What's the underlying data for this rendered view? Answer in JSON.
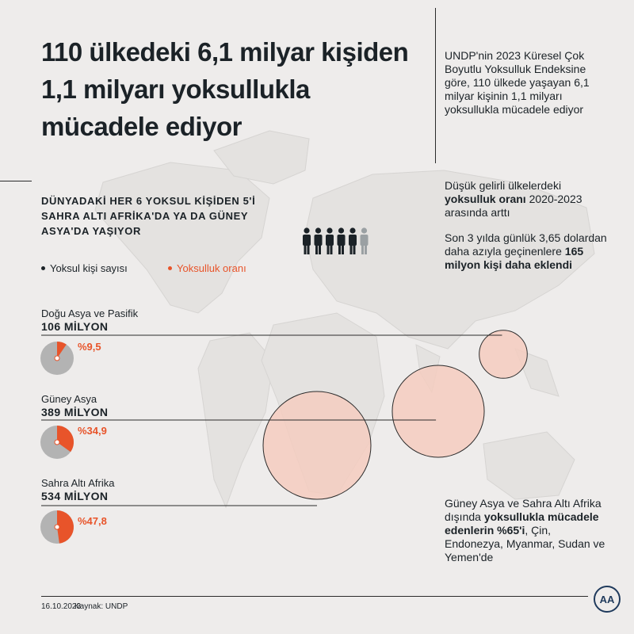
{
  "title": "110 ülkedeki 6,1 milyar kişiden 1,1 milyarı yoksullukla mücadele ediyor",
  "top_note": "UNDP'nin 2023 Küresel Çok Boyutlu Yoksulluk Endeksine göre, 110 ülkede yaşayan 6,1 milyar kişinin 1,1 milyarı yoksullukla mücadele ediyor",
  "subheading": "DÜNYADAKİ HER 6 YOKSUL KİŞİDEN 5'İ SAHRA ALTI AFRİKA'DA YA DA GÜNEY ASYA'DA YAŞIYOR",
  "people_icons": {
    "total": 6,
    "highlighted": 5,
    "color_main": "#1b2227",
    "color_other": "#9aa0a3"
  },
  "legend": {
    "poor_count": "Yoksul kişi sayısı",
    "poverty_rate": "Yoksulluk oranı"
  },
  "side_notes": {
    "p1_pre": "Düşük gelirli ülkelerdeki ",
    "p1_bold": "yoksulluk oranı",
    "p1_post": " 2020-2023 arasında arttı",
    "p2_pre": "Son 3 yılda günlük 3,65 dolardan daha azıyla geçinenlere ",
    "p2_bold": "165 milyon kişi daha eklendi",
    "p3_pre": "Güney Asya ve Sahra Altı Afrika dışında ",
    "p3_bold": "yoksullukla mücadele edenlerin %65'i",
    "p3_post": ", Çin, Endonezya, Myanmar, Sudan ve Yemen'de"
  },
  "regions": [
    {
      "name": "Doğu Asya ve Pasifik",
      "value": "106 MİLYON",
      "rate_label": "%9,5",
      "rate": 9.5,
      "poor_millions": 106
    },
    {
      "name": "Güney Asya",
      "value": "389 MİLYON",
      "rate_label": "%34,9",
      "rate": 34.9,
      "poor_millions": 389
    },
    {
      "name": "Sahra Altı Afrika",
      "value": "534 MİLYON",
      "rate_label": "%47,8",
      "rate": 47.8,
      "poor_millions": 534
    }
  ],
  "colors": {
    "accent": "#e8542a",
    "pie_base": "#b3b3b3",
    "bubble_fill": "#f4cdbf",
    "text": "#1b2227"
  },
  "footer": {
    "date": "16.10.2023",
    "source": "Kaynak: UNDP"
  },
  "logo_text": "AA"
}
